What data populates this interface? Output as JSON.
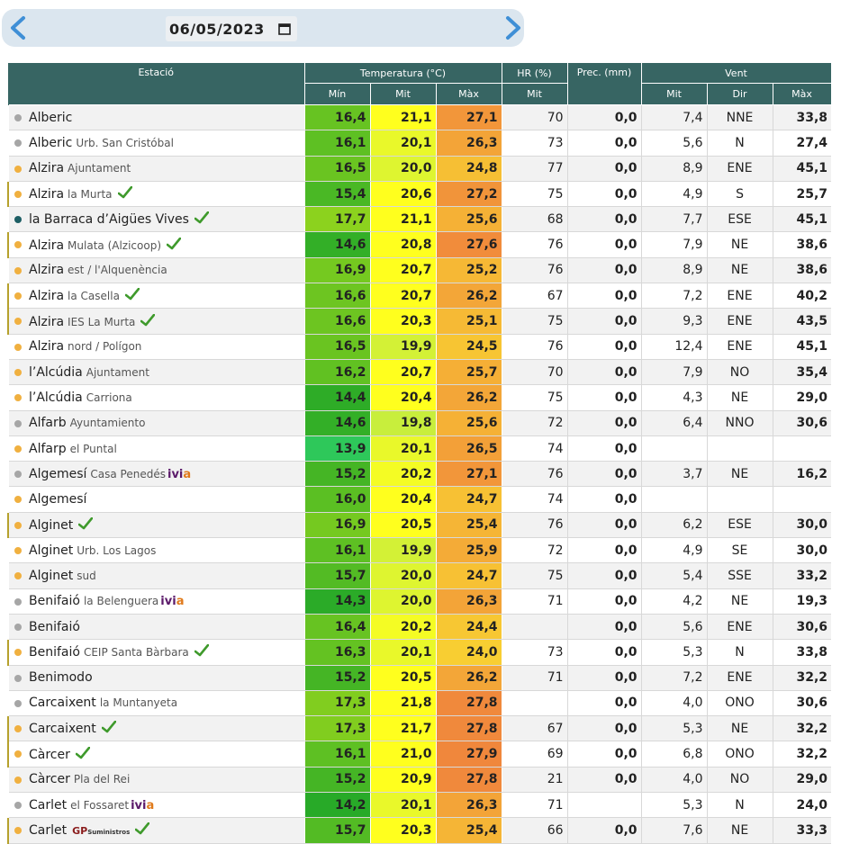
{
  "date": {
    "value": "06/05/2023"
  },
  "table": {
    "headers": {
      "station": "Estació",
      "temperature": "Temperatura (°C)",
      "hr": "HR (%)",
      "prec": "Prec. (mm)",
      "wind": "Vent"
    },
    "subheaders": {
      "tmin": "Mín",
      "tmit": "Mit",
      "tmax": "Màx",
      "hr_mit": "Mit",
      "w_mit": "Mit",
      "w_dir": "Dir",
      "w_max": "Màx"
    },
    "rows": [
      {
        "name": "Alberic",
        "sub": "",
        "dot": "grey",
        "check": false,
        "flag": false,
        "tmin": "16,4",
        "tmit": "21,1",
        "tmax": "27,1",
        "hr": "70",
        "prec": "0,0",
        "wmit": "7,4",
        "wdir": "NNE",
        "wmax": "33,8"
      },
      {
        "name": "Alberic",
        "sub": "Urb. San Cristóbal",
        "dot": "grey",
        "check": false,
        "flag": false,
        "tmin": "16,1",
        "tmit": "20,1",
        "tmax": "26,3",
        "hr": "73",
        "prec": "0,0",
        "wmit": "5,6",
        "wdir": "N",
        "wmax": "27,4"
      },
      {
        "name": "Alzira",
        "sub": "Ajuntament",
        "dot": "orange",
        "check": false,
        "flag": false,
        "tmin": "16,5",
        "tmit": "20,0",
        "tmax": "24,8",
        "hr": "77",
        "prec": "0,0",
        "wmit": "8,9",
        "wdir": "ENE",
        "wmax": "45,1"
      },
      {
        "name": "Alzira",
        "sub": "la Murta",
        "dot": "orange",
        "check": true,
        "flag": true,
        "tmin": "15,4",
        "tmit": "20,6",
        "tmax": "27,2",
        "hr": "75",
        "prec": "0,0",
        "wmit": "4,9",
        "wdir": "S",
        "wmax": "25,7"
      },
      {
        "name": "la Barraca d’Aigües Vives",
        "sub": "",
        "dot": "teal",
        "check": true,
        "flag": false,
        "tmin": "17,7",
        "tmit": "21,1",
        "tmax": "25,6",
        "hr": "68",
        "prec": "0,0",
        "wmit": "7,7",
        "wdir": "ESE",
        "wmax": "45,1"
      },
      {
        "name": "Alzira",
        "sub": "Mulata (Alzicoop)",
        "dot": "orange",
        "check": true,
        "flag": true,
        "tmin": "14,6",
        "tmit": "20,8",
        "tmax": "27,6",
        "hr": "76",
        "prec": "0,0",
        "wmit": "7,9",
        "wdir": "NE",
        "wmax": "38,6"
      },
      {
        "name": "Alzira",
        "sub": "est / l'Alquenència",
        "dot": "orange",
        "check": false,
        "flag": false,
        "tmin": "16,9",
        "tmit": "20,7",
        "tmax": "25,2",
        "hr": "76",
        "prec": "0,0",
        "wmit": "8,9",
        "wdir": "NE",
        "wmax": "38,6"
      },
      {
        "name": "Alzira",
        "sub": "la Casella",
        "dot": "orange",
        "check": true,
        "flag": true,
        "tmin": "16,6",
        "tmit": "20,7",
        "tmax": "26,2",
        "hr": "67",
        "prec": "0,0",
        "wmit": "7,2",
        "wdir": "ENE",
        "wmax": "40,2"
      },
      {
        "name": "Alzira",
        "sub": "IES La Murta",
        "dot": "orange",
        "check": true,
        "flag": true,
        "tmin": "16,6",
        "tmit": "20,3",
        "tmax": "25,1",
        "hr": "75",
        "prec": "0,0",
        "wmit": "9,3",
        "wdir": "ENE",
        "wmax": "43,5"
      },
      {
        "name": "Alzira",
        "sub": "nord / Polígon",
        "dot": "orange",
        "check": false,
        "flag": false,
        "tmin": "16,5",
        "tmit": "19,9",
        "tmax": "24,5",
        "hr": "76",
        "prec": "0,0",
        "wmit": "12,4",
        "wdir": "ENE",
        "wmax": "45,1"
      },
      {
        "name": "l’Alcúdia",
        "sub": "Ajuntament",
        "dot": "orange",
        "check": false,
        "flag": false,
        "tmin": "16,2",
        "tmit": "20,7",
        "tmax": "25,7",
        "hr": "70",
        "prec": "0,0",
        "wmit": "7,9",
        "wdir": "NO",
        "wmax": "35,4"
      },
      {
        "name": "l’Alcúdia",
        "sub": "Carriona",
        "dot": "orange",
        "check": false,
        "flag": false,
        "tmin": "14,4",
        "tmit": "20,4",
        "tmax": "26,2",
        "hr": "75",
        "prec": "0,0",
        "wmit": "4,3",
        "wdir": "NE",
        "wmax": "29,0"
      },
      {
        "name": "Alfarb",
        "sub": "Ayuntamiento",
        "dot": "grey",
        "check": false,
        "flag": false,
        "tmin": "14,6",
        "tmit": "19,8",
        "tmax": "25,6",
        "hr": "72",
        "prec": "0,0",
        "wmit": "6,4",
        "wdir": "NNO",
        "wmax": "30,6"
      },
      {
        "name": "Alfarp",
        "sub": "el Puntal",
        "dot": "orange",
        "check": false,
        "flag": false,
        "tmin": "13,9",
        "tmit": "20,1",
        "tmax": "26,5",
        "hr": "74",
        "prec": "0,0",
        "wmit": "",
        "wdir": "",
        "wmax": ""
      },
      {
        "name": "Algemesí",
        "sub": "Casa Penedés",
        "dot": "grey",
        "check": false,
        "flag": false,
        "ivia": true,
        "tmin": "15,2",
        "tmit": "20,2",
        "tmax": "27,1",
        "hr": "76",
        "prec": "0,0",
        "wmit": "3,7",
        "wdir": "NE",
        "wmax": "16,2"
      },
      {
        "name": "Algemesí",
        "sub": "",
        "dot": "orange",
        "check": false,
        "flag": false,
        "tmin": "16,0",
        "tmit": "20,4",
        "tmax": "24,7",
        "hr": "74",
        "prec": "0,0",
        "wmit": "",
        "wdir": "",
        "wmax": ""
      },
      {
        "name": "Alginet",
        "sub": "",
        "dot": "orange",
        "check": true,
        "flag": true,
        "tmin": "16,9",
        "tmit": "20,5",
        "tmax": "25,4",
        "hr": "76",
        "prec": "0,0",
        "wmit": "6,2",
        "wdir": "ESE",
        "wmax": "30,0"
      },
      {
        "name": "Alginet",
        "sub": "Urb. Los Lagos",
        "dot": "orange",
        "check": false,
        "flag": false,
        "tmin": "16,1",
        "tmit": "19,9",
        "tmax": "25,9",
        "hr": "72",
        "prec": "0,0",
        "wmit": "4,9",
        "wdir": "SE",
        "wmax": "30,0"
      },
      {
        "name": "Alginet",
        "sub": "sud",
        "dot": "orange",
        "check": false,
        "flag": false,
        "tmin": "15,7",
        "tmit": "20,0",
        "tmax": "24,7",
        "hr": "75",
        "prec": "0,0",
        "wmit": "5,4",
        "wdir": "SSE",
        "wmax": "33,2"
      },
      {
        "name": "Benifaió",
        "sub": "la Belenguera",
        "dot": "grey",
        "check": false,
        "flag": false,
        "ivia": true,
        "tmin": "14,3",
        "tmit": "20,0",
        "tmax": "26,3",
        "hr": "71",
        "prec": "0,0",
        "wmit": "4,2",
        "wdir": "NE",
        "wmax": "19,3"
      },
      {
        "name": "Benifaió",
        "sub": "",
        "dot": "grey",
        "check": false,
        "flag": false,
        "tmin": "16,4",
        "tmit": "20,2",
        "tmax": "24,4",
        "hr": "",
        "prec": "0,0",
        "wmit": "5,6",
        "wdir": "ENE",
        "wmax": "30,6"
      },
      {
        "name": "Benifaió",
        "sub": "CEIP Santa Bàrbara",
        "dot": "orange",
        "check": true,
        "flag": true,
        "tmin": "16,3",
        "tmit": "20,1",
        "tmax": "24,0",
        "hr": "73",
        "prec": "0,0",
        "wmit": "5,3",
        "wdir": "N",
        "wmax": "33,8"
      },
      {
        "name": "Benimodo",
        "sub": "",
        "dot": "grey",
        "check": false,
        "flag": false,
        "tmin": "15,2",
        "tmit": "20,5",
        "tmax": "26,2",
        "hr": "71",
        "prec": "0,0",
        "wmit": "7,2",
        "wdir": "ENE",
        "wmax": "32,2"
      },
      {
        "name": "Carcaixent",
        "sub": "la Muntanyeta",
        "dot": "grey",
        "check": false,
        "flag": false,
        "tmin": "17,3",
        "tmit": "21,8",
        "tmax": "27,8",
        "hr": "",
        "prec": "0,0",
        "wmit": "4,0",
        "wdir": "ONO",
        "wmax": "30,6"
      },
      {
        "name": "Carcaixent",
        "sub": "",
        "dot": "orange",
        "check": true,
        "flag": true,
        "tmin": "17,3",
        "tmit": "21,7",
        "tmax": "27,8",
        "hr": "67",
        "prec": "0,0",
        "wmit": "5,3",
        "wdir": "NE",
        "wmax": "32,2"
      },
      {
        "name": "Càrcer",
        "sub": "",
        "dot": "orange",
        "check": true,
        "flag": true,
        "tmin": "16,1",
        "tmit": "21,0",
        "tmax": "27,9",
        "hr": "69",
        "prec": "0,0",
        "wmit": "6,8",
        "wdir": "ONO",
        "wmax": "32,2"
      },
      {
        "name": "Càrcer",
        "sub": "Pla del Rei",
        "dot": "orange",
        "check": false,
        "flag": false,
        "tmin": "15,2",
        "tmit": "20,9",
        "tmax": "27,8",
        "hr": "21",
        "prec": "0,0",
        "wmit": "4,0",
        "wdir": "NO",
        "wmax": "29,0"
      },
      {
        "name": "Carlet",
        "sub": "el Fossaret",
        "dot": "grey",
        "check": false,
        "flag": false,
        "ivia": true,
        "tmin": "14,2",
        "tmit": "20,1",
        "tmax": "26,3",
        "hr": "71",
        "prec": "",
        "wmit": "5,3",
        "wdir": "N",
        "wmax": "24,0"
      },
      {
        "name": "Carlet",
        "sub": "",
        "dot": "orange",
        "check": true,
        "flag": true,
        "gp": true,
        "tmin": "15,7",
        "tmit": "20,3",
        "tmax": "25,4",
        "hr": "66",
        "prec": "0,0",
        "wmit": "7,6",
        "wdir": "NE",
        "wmax": "33,3"
      }
    ],
    "logos": {
      "ivia_a": "ivi",
      "ivia_b": "a",
      "gp_a": "GP",
      "gp_b": "Suministros"
    }
  }
}
